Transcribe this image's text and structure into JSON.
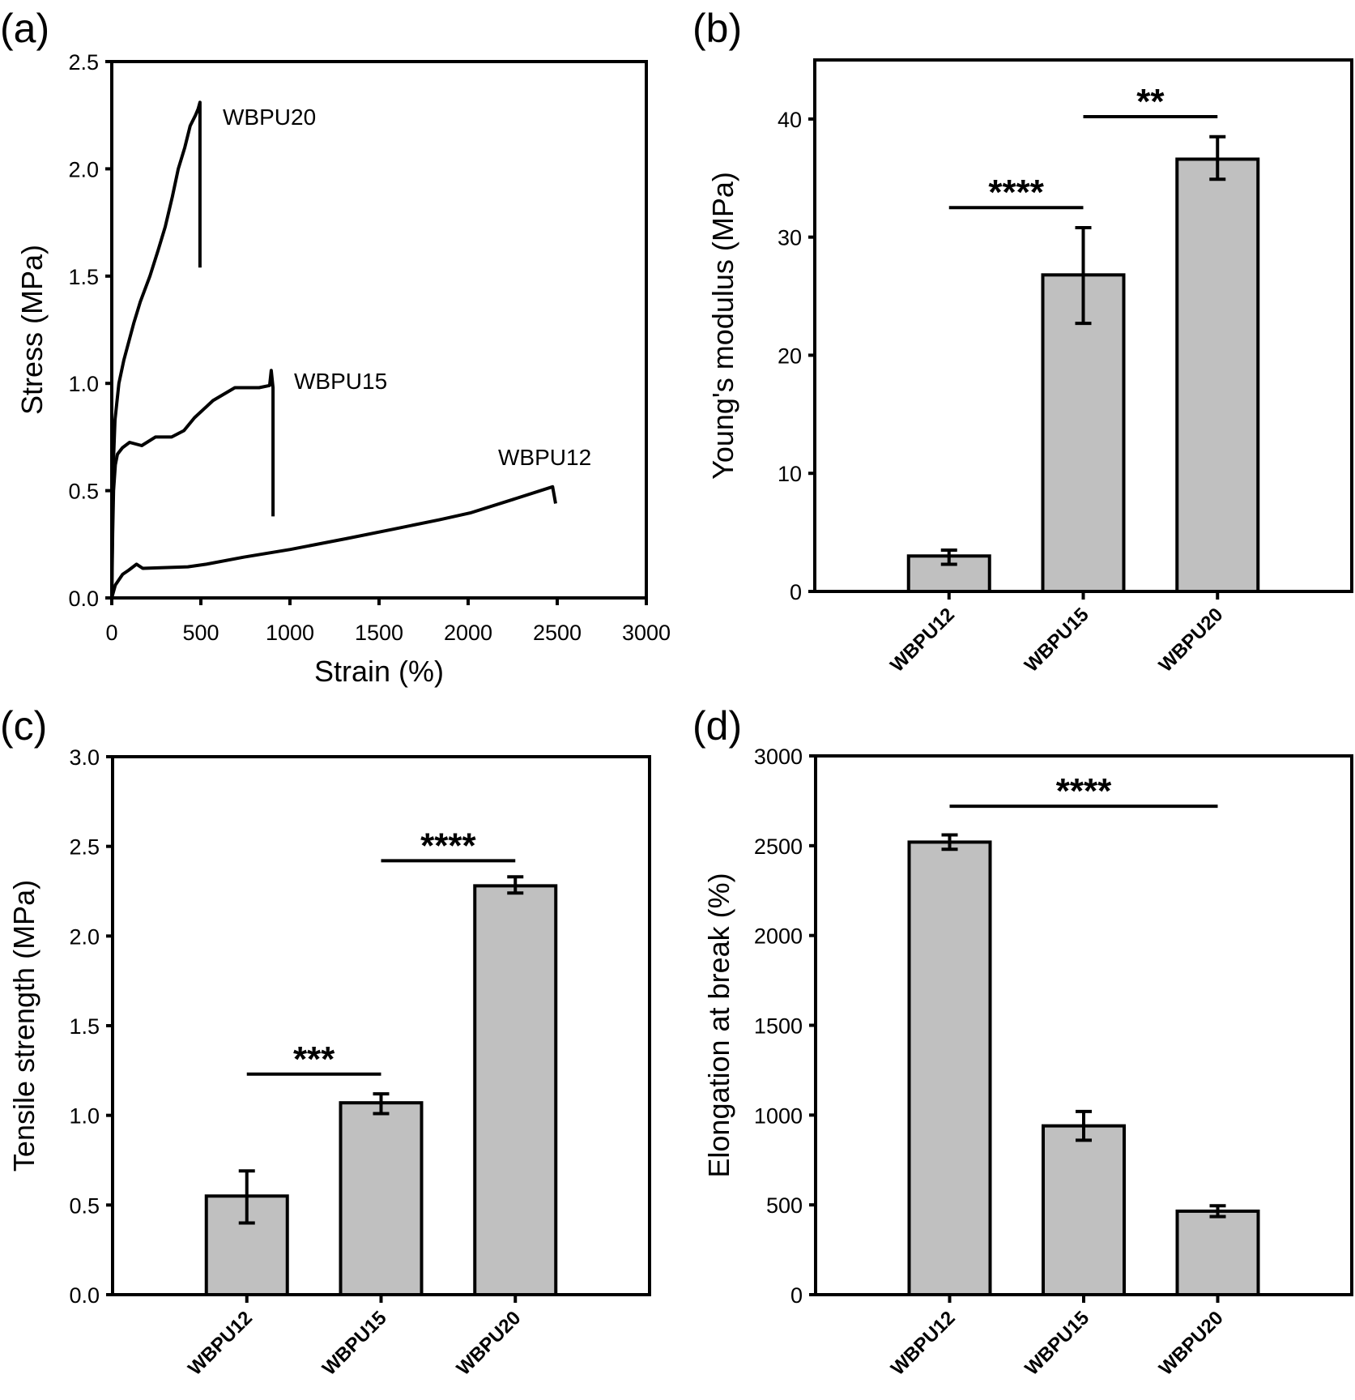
{
  "figure": {
    "panels": [
      "(a)",
      "(b)",
      "(c)",
      "(d)"
    ]
  },
  "chart_data": [
    {
      "id": "a",
      "panel_label": "(a)",
      "type": "line",
      "title": "",
      "xlabel": "Strain (%)",
      "ylabel": "Stress (MPa)",
      "xlim": [
        0,
        3000
      ],
      "ylim": [
        0,
        2.5
      ],
      "xticks": [
        "0",
        "500",
        "1000",
        "1500",
        "2000",
        "2500",
        "3000"
      ],
      "xtick_values": [
        0,
        500,
        1000,
        1500,
        2000,
        2500,
        3000
      ],
      "yticks": [
        "0.0",
        "0.5",
        "1.0",
        "1.5",
        "2.0",
        "2.5"
      ],
      "ytick_values": [
        0,
        0.5,
        1.0,
        1.5,
        2.0,
        2.5
      ],
      "grid": false,
      "legend": "none (inline labels)",
      "series": [
        {
          "name": "WBPU20",
          "x": [
            0,
            5,
            10,
            18,
            40,
            68,
            123,
            160,
            214,
            260,
            300,
            340,
            373,
            410,
            440,
            470,
            485,
            495,
            495,
            495
          ],
          "y": [
            0,
            0.4,
            0.65,
            0.83,
            1.0,
            1.11,
            1.28,
            1.38,
            1.5,
            1.62,
            1.73,
            1.87,
            2.0,
            2.1,
            2.2,
            2.25,
            2.28,
            2.31,
            1.9,
            1.54
          ]
        },
        {
          "name": "WBPU15",
          "x": [
            0,
            5,
            10,
            20,
            32,
            60,
            100,
            168,
            245,
            336,
            405,
            464,
            568,
            691,
            827,
            886,
            895,
            905,
            905
          ],
          "y": [
            0,
            0.3,
            0.5,
            0.62,
            0.67,
            0.7,
            0.725,
            0.71,
            0.75,
            0.75,
            0.78,
            0.84,
            0.92,
            0.98,
            0.98,
            0.99,
            1.06,
            0.98,
            0.38
          ]
        },
        {
          "name": "WBPU12",
          "x": [
            0,
            20,
            61,
            96,
            139,
            174,
            427,
            531,
            740,
            1002,
            1315,
            1577,
            1838,
            2012,
            2274,
            2474,
            2491
          ],
          "y": [
            0,
            0.06,
            0.11,
            0.13,
            0.157,
            0.138,
            0.145,
            0.157,
            0.19,
            0.226,
            0.276,
            0.32,
            0.364,
            0.396,
            0.465,
            0.518,
            0.44
          ]
        }
      ],
      "annotations": [
        "WBPU20",
        "WBPU15",
        "WBPU12"
      ]
    },
    {
      "id": "b",
      "panel_label": "(b)",
      "type": "bar",
      "title": "",
      "xlabel": "",
      "ylabel": "Young's modulus (MPa)",
      "ylim": [
        0,
        45
      ],
      "yticks": [
        "0",
        "10",
        "20",
        "30",
        "40"
      ],
      "ytick_values": [
        0,
        10,
        20,
        30,
        40
      ],
      "grid": false,
      "categories": [
        "WBPU12",
        "WBPU15",
        "WBPU20"
      ],
      "values": [
        3.0,
        26.8,
        36.6
      ],
      "error_low": [
        2.3,
        22.7,
        34.9
      ],
      "error_high": [
        3.5,
        30.8,
        38.5
      ],
      "significance": [
        {
          "from": 0,
          "to": 1,
          "y": 32.5,
          "label": "****"
        },
        {
          "from": 1,
          "to": 2,
          "y": 40.2,
          "label": "**"
        }
      ]
    },
    {
      "id": "c",
      "panel_label": "(c)",
      "type": "bar",
      "title": "",
      "xlabel": "",
      "ylabel": "Tensile strength (MPa)",
      "ylim": [
        0,
        3.0
      ],
      "yticks": [
        "0.0",
        "0.5",
        "1.0",
        "1.5",
        "2.0",
        "2.5",
        "3.0"
      ],
      "ytick_values": [
        0,
        0.5,
        1.0,
        1.5,
        2.0,
        2.5,
        3.0
      ],
      "grid": false,
      "categories": [
        "WBPU12",
        "WBPU15",
        "WBPU20"
      ],
      "values": [
        0.55,
        1.07,
        2.28
      ],
      "error_low": [
        0.4,
        1.01,
        2.24
      ],
      "error_high": [
        0.69,
        1.12,
        2.33
      ],
      "significance": [
        {
          "from": 0,
          "to": 1,
          "y": 1.23,
          "label": "***"
        },
        {
          "from": 1,
          "to": 2,
          "y": 2.42,
          "label": "****"
        }
      ]
    },
    {
      "id": "d",
      "panel_label": "(d)",
      "type": "bar",
      "title": "",
      "xlabel": "",
      "ylabel": "Elongation at break (%)",
      "ylim": [
        0,
        3000
      ],
      "yticks": [
        "0",
        "500",
        "1000",
        "1500",
        "2000",
        "2500",
        "3000"
      ],
      "ytick_values": [
        0,
        500,
        1000,
        1500,
        2000,
        2500,
        3000
      ],
      "grid": false,
      "categories": [
        "WBPU12",
        "WBPU15",
        "WBPU20"
      ],
      "values": [
        2520,
        940,
        465
      ],
      "error_low": [
        2480,
        860,
        435
      ],
      "error_high": [
        2560,
        1020,
        495
      ],
      "significance": [
        {
          "from": 0,
          "to": 2,
          "y": 2720,
          "label": "****"
        }
      ]
    }
  ],
  "colors": {
    "bar_fill": "#c0c0c0",
    "ink": "#000000",
    "background": "#ffffff"
  }
}
